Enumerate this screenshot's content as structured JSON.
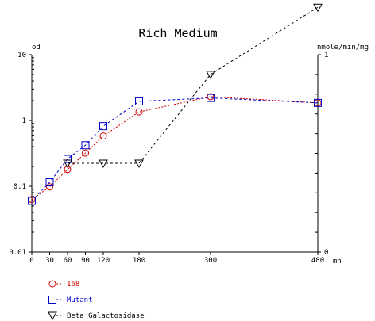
{
  "chart_data": {
    "type": "line",
    "title": "Rich Medium",
    "x": {
      "ticks": [
        0,
        30,
        60,
        90,
        120,
        180,
        300,
        480
      ],
      "range": [
        0,
        480
      ],
      "unit": "mn"
    },
    "y_left": {
      "label": "od",
      "scale": "log",
      "range": [
        0.01,
        10
      ],
      "ticks": [
        {
          "value": 10,
          "label": "10"
        },
        {
          "value": 1,
          "label": "1"
        },
        {
          "value": 0.1,
          "label": "0.1"
        },
        {
          "value": 0.01,
          "label": "0.01"
        }
      ]
    },
    "y_right": {
      "label": "nmole/min/mg",
      "scale": "linear",
      "range": [
        0,
        1
      ],
      "ticks": [
        {
          "value": 1,
          "label": "1"
        },
        {
          "value": 0,
          "label": "0"
        }
      ]
    },
    "series": [
      {
        "name": "168",
        "axis": "left",
        "color": "#d00000",
        "marker": "circle",
        "line": "dotted",
        "points": [
          [
            0,
            0.063
          ],
          [
            30,
            0.098
          ],
          [
            60,
            0.18
          ],
          [
            90,
            0.32
          ],
          [
            120,
            0.58
          ],
          [
            180,
            1.35
          ],
          [
            300,
            2.3
          ],
          [
            480,
            1.85
          ]
        ]
      },
      {
        "name": "Mutant",
        "axis": "left",
        "color": "#0000cc",
        "marker": "square",
        "line": "dashed",
        "points": [
          [
            0,
            0.06
          ],
          [
            30,
            0.115
          ],
          [
            60,
            0.26
          ],
          [
            90,
            0.42
          ],
          [
            120,
            0.82
          ],
          [
            180,
            1.95
          ],
          [
            300,
            2.2
          ],
          [
            480,
            1.85
          ]
        ]
      },
      {
        "name": "Beta Galactosidase",
        "axis": "right",
        "color": "#000000",
        "marker": "triangle-down",
        "line": "dashed",
        "points": [
          [
            60,
            0.45
          ],
          [
            120,
            0.45
          ],
          [
            180,
            0.45
          ],
          [
            300,
            0.9
          ],
          [
            480,
            1.24
          ]
        ]
      }
    ],
    "legend": "bottom-left",
    "grid": false
  }
}
